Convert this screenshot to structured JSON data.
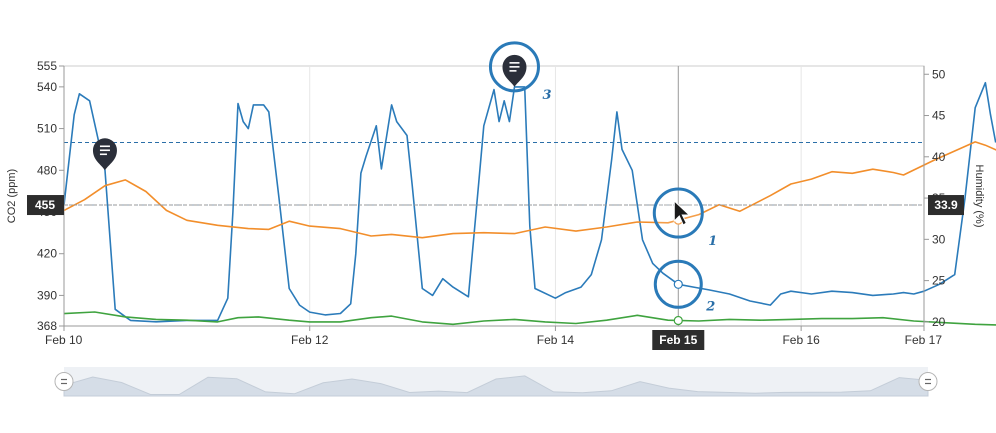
{
  "colors": {
    "co2": "#2b7bba",
    "humidity": "#f28e2b",
    "baseline": "#3fa33f",
    "threshold": "#2b6fa8",
    "crosshair": "#999999",
    "badge": "#2d2d2d",
    "navigator_fill": "#d5dde7",
    "ring": "#2a7ab8"
  },
  "icons": [
    "comment-pin-icon",
    "cursor-arrow-icon",
    "range-handle-icon"
  ],
  "chart_data": {
    "type": "line",
    "title": "",
    "x_type": "date",
    "xlim": [
      "Feb 10",
      "Feb 17"
    ],
    "x_ticks": [
      "Feb 10",
      "Feb 12",
      "Feb 14",
      "Feb 16",
      "Feb 17"
    ],
    "crosshair_x_label": "Feb 15",
    "y_left": {
      "label": "CO2 (ppm)",
      "range": [
        368,
        555
      ],
      "ticks": [
        368,
        390,
        420,
        450,
        480,
        510,
        540,
        555
      ],
      "crosshair_value": "455"
    },
    "y_right": {
      "label": "Humidity (%)",
      "range": [
        19.5,
        51
      ],
      "ticks": [
        20,
        25,
        30,
        35,
        40,
        45,
        50
      ],
      "crosshair_value": "33.9"
    },
    "threshold_lines": [
      500,
      455
    ],
    "series": [
      {
        "axis": "left",
        "role": "co2",
        "points": [
          [
            "Feb 10 00:00",
            455
          ],
          [
            "Feb 10 02:00",
            520
          ],
          [
            "Feb 10 03:00",
            535
          ],
          [
            "Feb 10 05:00",
            530
          ],
          [
            "Feb 10 08:00",
            480
          ],
          [
            "Feb 10 10:00",
            380
          ],
          [
            "Feb 10 13:00",
            372
          ],
          [
            "Feb 10 18:00",
            371
          ],
          [
            "Feb 11 00:00",
            372
          ],
          [
            "Feb 11 06:00",
            372
          ],
          [
            "Feb 11 08:00",
            388
          ],
          [
            "Feb 11 09:00",
            450
          ],
          [
            "Feb 11 10:00",
            528
          ],
          [
            "Feb 11 11:00",
            515
          ],
          [
            "Feb 11 12:00",
            510
          ],
          [
            "Feb 11 13:00",
            527
          ],
          [
            "Feb 11 15:00",
            527
          ],
          [
            "Feb 11 16:00",
            522
          ],
          [
            "Feb 11 18:00",
            460
          ],
          [
            "Feb 11 20:00",
            395
          ],
          [
            "Feb 11 22:00",
            383
          ],
          [
            "Feb 12 00:00",
            378
          ],
          [
            "Feb 12 03:00",
            376
          ],
          [
            "Feb 12 06:00",
            377
          ],
          [
            "Feb 12 08:00",
            384
          ],
          [
            "Feb 12 09:00",
            420
          ],
          [
            "Feb 12 10:00",
            478
          ],
          [
            "Feb 12 11:00",
            490
          ],
          [
            "Feb 12 13:00",
            512
          ],
          [
            "Feb 12 14:00",
            481
          ],
          [
            "Feb 12 16:00",
            527
          ],
          [
            "Feb 12 17:00",
            515
          ],
          [
            "Feb 12 19:00",
            505
          ],
          [
            "Feb 12 20:00",
            470
          ],
          [
            "Feb 12 22:00",
            395
          ],
          [
            "Feb 13 00:00",
            390
          ],
          [
            "Feb 13 02:00",
            402
          ],
          [
            "Feb 13 04:00",
            396
          ],
          [
            "Feb 13 07:00",
            389
          ],
          [
            "Feb 13 09:00",
            470
          ],
          [
            "Feb 13 10:00",
            512
          ],
          [
            "Feb 13 12:00",
            538
          ],
          [
            "Feb 13 13:00",
            515
          ],
          [
            "Feb 13 14:00",
            530
          ],
          [
            "Feb 13 15:00",
            515
          ],
          [
            "Feb 13 16:00",
            540
          ],
          [
            "Feb 13 18:00",
            540
          ],
          [
            "Feb 13 19:00",
            440
          ],
          [
            "Feb 13 20:00",
            395
          ],
          [
            "Feb 14 00:00",
            388
          ],
          [
            "Feb 14 02:00",
            392
          ],
          [
            "Feb 14 05:00",
            396
          ],
          [
            "Feb 14 07:00",
            405
          ],
          [
            "Feb 14 09:00",
            430
          ],
          [
            "Feb 14 11:00",
            488
          ],
          [
            "Feb 14 12:00",
            522
          ],
          [
            "Feb 14 13:00",
            495
          ],
          [
            "Feb 14 15:00",
            480
          ],
          [
            "Feb 14 17:00",
            430
          ],
          [
            "Feb 14 19:00",
            413
          ],
          [
            "Feb 14 21:00",
            406
          ],
          [
            "Feb 15 00:00",
            398
          ],
          [
            "Feb 15 03:00",
            396
          ],
          [
            "Feb 15 06:00",
            394
          ],
          [
            "Feb 15 10:00",
            391
          ],
          [
            "Feb 15 14:00",
            386
          ],
          [
            "Feb 15 18:00",
            383
          ],
          [
            "Feb 15 20:00",
            391
          ],
          [
            "Feb 15 22:00",
            393
          ],
          [
            "Feb 16 02:00",
            391
          ],
          [
            "Feb 16 06:00",
            393
          ],
          [
            "Feb 16 10:00",
            392
          ],
          [
            "Feb 16 14:00",
            390
          ],
          [
            "Feb 16 18:00",
            391
          ],
          [
            "Feb 16 20:00",
            392
          ],
          [
            "Feb 16 22:00",
            391
          ],
          [
            "Feb 17 00:00",
            393
          ],
          [
            "Feb 17 03:00",
            398
          ],
          [
            "Feb 17 06:00",
            405
          ],
          [
            "Feb 17 08:00",
            460
          ],
          [
            "Feb 17 10:00",
            525
          ],
          [
            "Feb 17 12:00",
            543
          ],
          [
            "Feb 17 13:00",
            520
          ],
          [
            "Feb 17 14:00",
            500
          ]
        ]
      },
      {
        "axis": "right",
        "role": "humidity",
        "points": [
          [
            "Feb 10 00:00",
            33.5
          ],
          [
            "Feb 10 04:00",
            34.8
          ],
          [
            "Feb 10 08:00",
            36.5
          ],
          [
            "Feb 10 12:00",
            37.2
          ],
          [
            "Feb 10 16:00",
            35.8
          ],
          [
            "Feb 10 20:00",
            33.5
          ],
          [
            "Feb 11 00:00",
            32.3
          ],
          [
            "Feb 11 06:00",
            31.7
          ],
          [
            "Feb 11 12:00",
            31.3
          ],
          [
            "Feb 11 16:00",
            31.2
          ],
          [
            "Feb 11 20:00",
            32.2
          ],
          [
            "Feb 12 00:00",
            31.6
          ],
          [
            "Feb 12 06:00",
            31.3
          ],
          [
            "Feb 12 12:00",
            30.4
          ],
          [
            "Feb 12 16:00",
            30.6
          ],
          [
            "Feb 12 22:00",
            30.2
          ],
          [
            "Feb 13 04:00",
            30.7
          ],
          [
            "Feb 13 10:00",
            30.8
          ],
          [
            "Feb 13 16:00",
            30.7
          ],
          [
            "Feb 13 22:00",
            31.5
          ],
          [
            "Feb 14 04:00",
            31.0
          ],
          [
            "Feb 14 10:00",
            31.5
          ],
          [
            "Feb 14 16:00",
            32.1
          ],
          [
            "Feb 14 22:00",
            32.0
          ],
          [
            "Feb 15 04:00",
            33.0
          ],
          [
            "Feb 15 08:00",
            34.2
          ],
          [
            "Feb 15 12:00",
            33.4
          ],
          [
            "Feb 15 18:00",
            35.3
          ],
          [
            "Feb 15 22:00",
            36.7
          ],
          [
            "Feb 16 02:00",
            37.3
          ],
          [
            "Feb 16 06:00",
            38.2
          ],
          [
            "Feb 16 10:00",
            38.0
          ],
          [
            "Feb 16 14:00",
            38.5
          ],
          [
            "Feb 16 18:00",
            38.1
          ],
          [
            "Feb 16 20:00",
            37.8
          ],
          [
            "Feb 16 22:00",
            38.4
          ],
          [
            "Feb 17 02:00",
            39.6
          ],
          [
            "Feb 17 06:00",
            40.7
          ],
          [
            "Feb 17 10:00",
            41.8
          ],
          [
            "Feb 17 12:00",
            41.4
          ],
          [
            "Feb 17 16:00",
            40.3
          ],
          [
            "Feb 17 20:00",
            38.8
          ],
          [
            "Feb 17 24:00",
            39.5
          ]
        ]
      },
      {
        "axis": "right",
        "role": "baseline",
        "points": [
          [
            "Feb 10 00:00",
            21.0
          ],
          [
            "Feb 10 06:00",
            21.2
          ],
          [
            "Feb 10 12:00",
            20.6
          ],
          [
            "Feb 10 18:00",
            20.3
          ],
          [
            "Feb 11 00:00",
            20.2
          ],
          [
            "Feb 11 06:00",
            20.0
          ],
          [
            "Feb 11 10:00",
            20.5
          ],
          [
            "Feb 11 14:00",
            20.6
          ],
          [
            "Feb 11 20:00",
            20.2
          ],
          [
            "Feb 12 00:00",
            20.0
          ],
          [
            "Feb 12 06:00",
            20.0
          ],
          [
            "Feb 12 12:00",
            20.5
          ],
          [
            "Feb 12 16:00",
            20.7
          ],
          [
            "Feb 12 22:00",
            20.0
          ],
          [
            "Feb 13 04:00",
            19.7
          ],
          [
            "Feb 13 10:00",
            20.1
          ],
          [
            "Feb 13 16:00",
            20.3
          ],
          [
            "Feb 13 22:00",
            20.0
          ],
          [
            "Feb 14 04:00",
            19.8
          ],
          [
            "Feb 14 10:00",
            20.2
          ],
          [
            "Feb 14 16:00",
            20.8
          ],
          [
            "Feb 14 22:00",
            20.2
          ],
          [
            "Feb 15 04:00",
            20.1
          ],
          [
            "Feb 15 10:00",
            20.3
          ],
          [
            "Feb 15 16:00",
            20.2
          ],
          [
            "Feb 15 22:00",
            20.3
          ],
          [
            "Feb 16 04:00",
            20.4
          ],
          [
            "Feb 16 10:00",
            20.4
          ],
          [
            "Feb 16 16:00",
            20.5
          ],
          [
            "Feb 16 22:00",
            20.1
          ],
          [
            "Feb 17 04:00",
            19.9
          ],
          [
            "Feb 17 10:00",
            19.7
          ],
          [
            "Feb 17 16:00",
            19.6
          ],
          [
            "Feb 17 20:00",
            20.6
          ],
          [
            "Feb 17 24:00",
            20.4
          ]
        ]
      }
    ],
    "annotations": [
      {
        "number": "1",
        "target": "Feb 15 00:00",
        "kind": "cursor"
      },
      {
        "number": "2",
        "target": "Feb 15 00:00",
        "kind": "ring"
      },
      {
        "number": "3",
        "target": "Feb 13 16:00",
        "kind": "comment-pin"
      }
    ],
    "comment_pins": [
      "Feb 10 08:00",
      "Feb 13 16:00"
    ],
    "navigator": {
      "type": "area",
      "values": [
        455,
        530,
        480,
        372,
        372,
        528,
        515,
        395,
        378,
        478,
        512,
        470,
        390,
        402,
        389,
        512,
        540,
        395,
        388,
        405,
        488,
        430,
        398,
        391,
        383,
        391,
        392,
        393,
        405,
        525,
        500
      ]
    }
  }
}
